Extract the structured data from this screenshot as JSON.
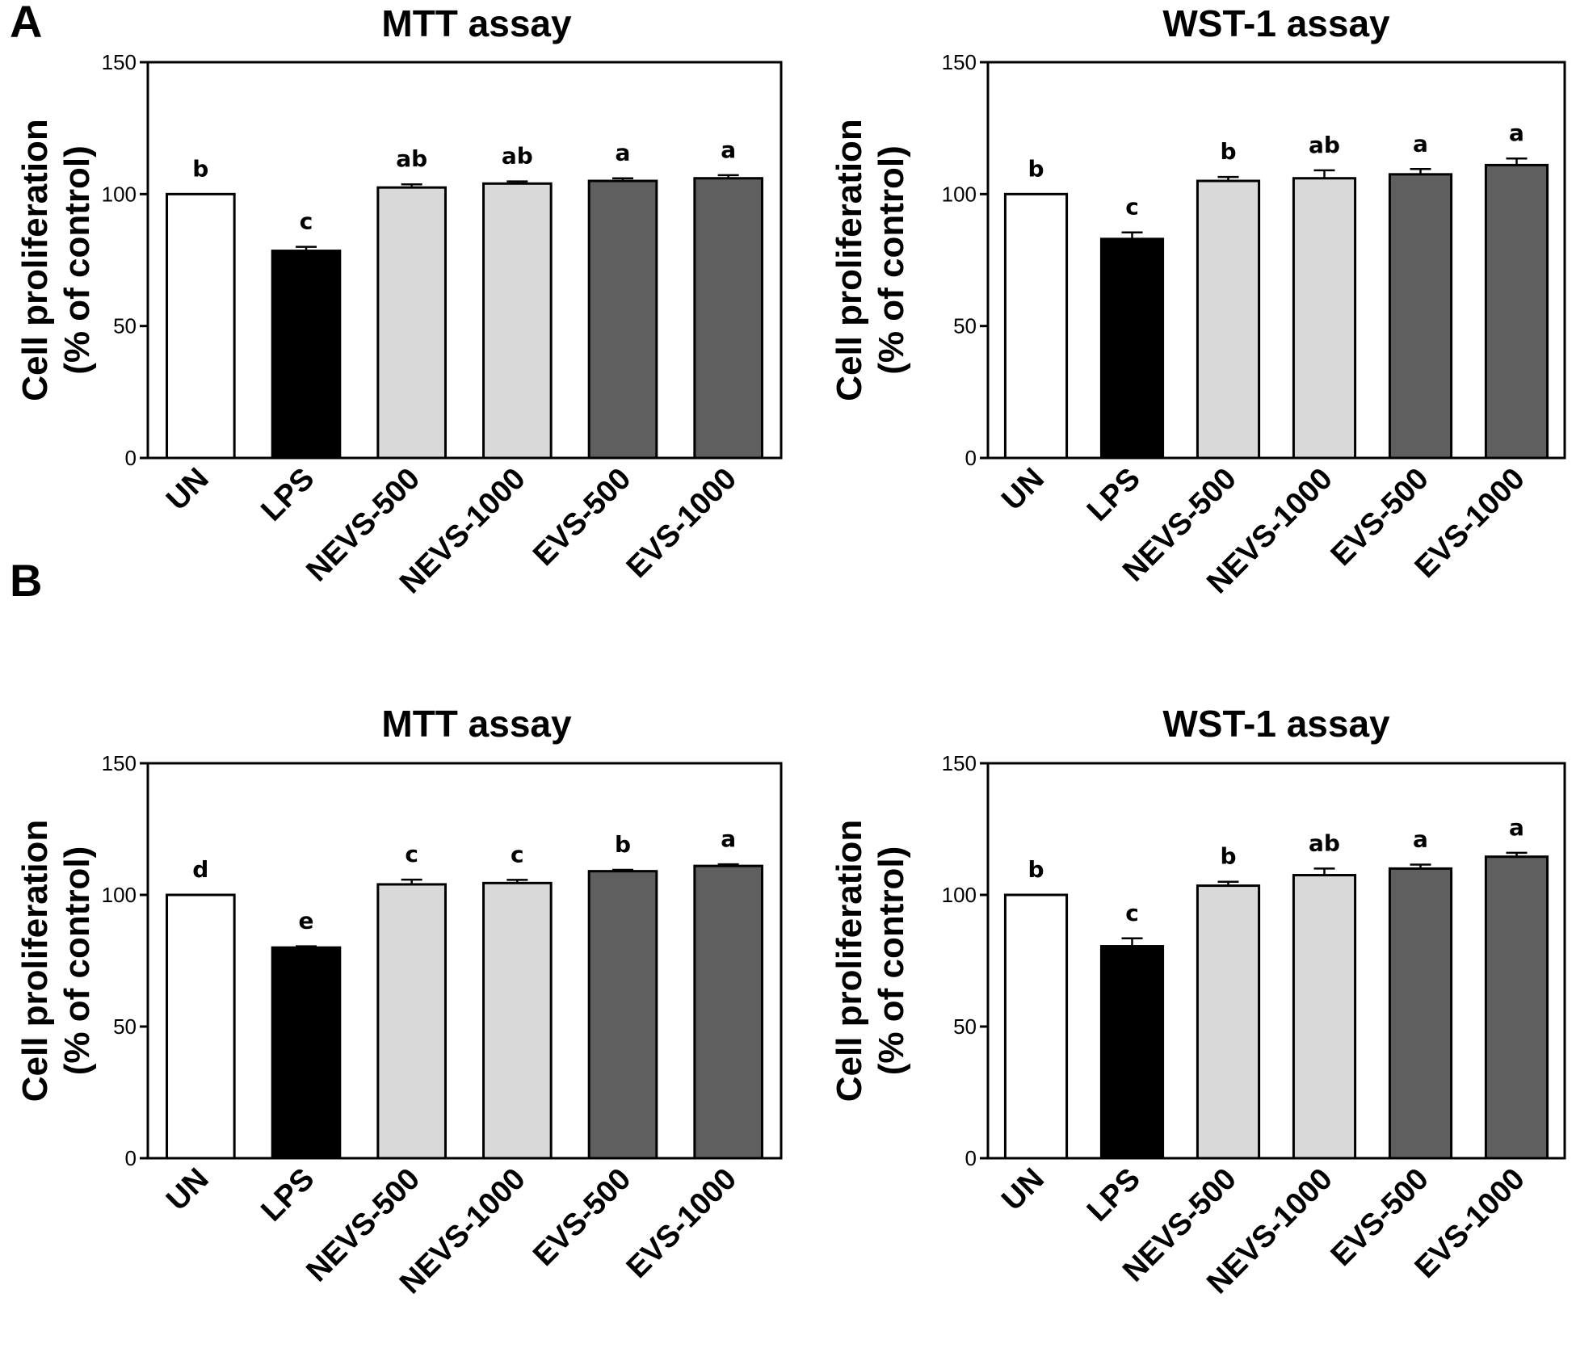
{
  "panels": [
    {
      "label": "A"
    },
    {
      "label": "B"
    }
  ],
  "colors": {
    "UN": "#ffffff",
    "LPS": "#000000",
    "NEVS": "#d9d9d9",
    "EVS": "#5f5f5f",
    "outline": "#000000"
  },
  "chart_data": [
    {
      "type": "bar",
      "panel": "A",
      "title": "MTT assay",
      "ylabel": "Cell proliferation\n(% of control)",
      "ylim": [
        0,
        150
      ],
      "yticks": [
        0,
        50,
        100,
        150
      ],
      "categories": [
        "UN",
        "LPS",
        "NEVS-500",
        "NEVS-1000",
        "EVS-500",
        "EVS-1000"
      ],
      "values": [
        100,
        78.5,
        102.5,
        104,
        105,
        106
      ],
      "errors": [
        0,
        1.5,
        1.2,
        0.8,
        1.0,
        1.2
      ],
      "significance": [
        "b",
        "c",
        "ab",
        "ab",
        "a",
        "a"
      ],
      "grid": false
    },
    {
      "type": "bar",
      "panel": "A",
      "title": "WST-1 assay",
      "ylabel": "Cell proliferation\n(% of control)",
      "ylim": [
        0,
        150
      ],
      "yticks": [
        0,
        50,
        100,
        150
      ],
      "categories": [
        "UN",
        "LPS",
        "NEVS-500",
        "NEVS-1000",
        "EVS-500",
        "EVS-1000"
      ],
      "values": [
        100,
        83,
        105,
        106,
        107.5,
        111
      ],
      "errors": [
        0,
        2.5,
        1.5,
        3.0,
        2.0,
        2.5
      ],
      "significance": [
        "b",
        "c",
        "b",
        "ab",
        "a",
        "a"
      ],
      "grid": false
    },
    {
      "type": "bar",
      "panel": "B",
      "title": "MTT assay",
      "ylabel": "Cell proliferation\n(% of control)",
      "ylim": [
        0,
        150
      ],
      "yticks": [
        0,
        50,
        100,
        150
      ],
      "categories": [
        "UN",
        "LPS",
        "NEVS-500",
        "NEVS-1000",
        "EVS-500",
        "EVS-1000"
      ],
      "values": [
        100,
        80,
        104,
        104.5,
        109,
        111
      ],
      "errors": [
        0,
        0.5,
        1.8,
        1.2,
        0.5,
        0.6
      ],
      "significance": [
        "d",
        "e",
        "c",
        "c",
        "b",
        "a"
      ],
      "grid": false
    },
    {
      "type": "bar",
      "panel": "B",
      "title": "WST-1 assay",
      "ylabel": "Cell proliferation\n(% of control)",
      "ylim": [
        0,
        150
      ],
      "yticks": [
        0,
        50,
        100,
        150
      ],
      "categories": [
        "UN",
        "LPS",
        "NEVS-500",
        "NEVS-1000",
        "EVS-500",
        "EVS-1000"
      ],
      "values": [
        100,
        80.5,
        103.5,
        107.5,
        110,
        114.5
      ],
      "errors": [
        0,
        3.0,
        1.5,
        2.5,
        1.5,
        1.5
      ],
      "significance": [
        "b",
        "c",
        "b",
        "ab",
        "a",
        "a"
      ],
      "grid": false
    }
  ]
}
